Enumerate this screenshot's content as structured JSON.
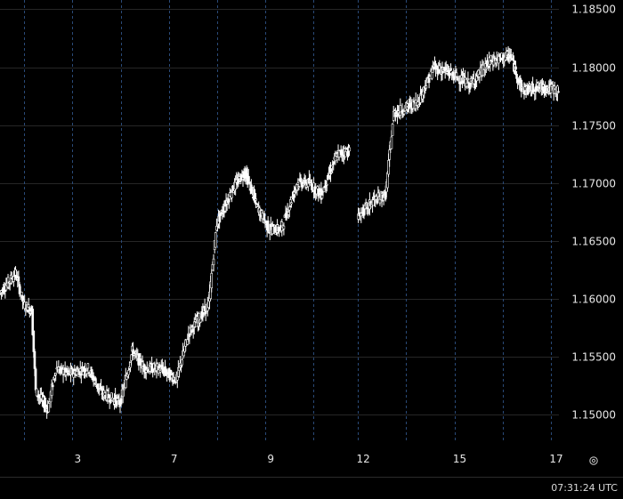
{
  "chart_data": {
    "type": "candlestick",
    "x_tick_labels": [
      "3",
      "7",
      "9",
      "12",
      "15",
      "17"
    ],
    "y_tick_labels": [
      "1.18500",
      "1.18000",
      "1.17500",
      "1.17000",
      "1.16500",
      "1.16000",
      "1.15500",
      "1.15000"
    ],
    "y_ticks": [
      1.185,
      1.18,
      1.175,
      1.17,
      1.165,
      1.16,
      1.155,
      1.15
    ],
    "ylim": [
      1.1477,
      1.1858
    ],
    "x_range": [
      0,
      139
    ],
    "grid": true,
    "price_path": [
      [
        0,
        1.1605
      ],
      [
        4,
        1.1622
      ],
      [
        6,
        1.1595
      ],
      [
        8,
        1.159
      ],
      [
        9,
        1.152
      ],
      [
        12,
        1.1505
      ],
      [
        14,
        1.154
      ],
      [
        17,
        1.1535
      ],
      [
        22,
        1.154
      ],
      [
        25,
        1.152
      ],
      [
        30,
        1.151
      ],
      [
        33,
        1.1555
      ],
      [
        36,
        1.154
      ],
      [
        40,
        1.154
      ],
      [
        44,
        1.153
      ],
      [
        47,
        1.157
      ],
      [
        52,
        1.1595
      ],
      [
        54,
        1.1665
      ],
      [
        58,
        1.1695
      ],
      [
        61,
        1.171
      ],
      [
        64,
        1.168
      ],
      [
        67,
        1.166
      ],
      [
        70,
        1.166
      ],
      [
        74,
        1.17
      ],
      [
        77,
        1.17
      ],
      [
        80,
        1.169
      ],
      [
        84,
        1.1725
      ],
      [
        87,
        1.1728
      ],
      [
        88,
        null
      ],
      [
        89,
        1.167
      ],
      [
        93,
        1.1685
      ],
      [
        96,
        1.169
      ],
      [
        98,
        1.176
      ],
      [
        104,
        1.177
      ],
      [
        108,
        1.18
      ],
      [
        112,
        1.1795
      ],
      [
        117,
        1.1785
      ],
      [
        122,
        1.1805
      ],
      [
        127,
        1.181
      ],
      [
        130,
        1.178
      ],
      [
        135,
        1.1783
      ],
      [
        139,
        1.178
      ]
    ],
    "grid_days": [
      {
        "label": "",
        "pos": 6
      },
      {
        "label": "3",
        "pos": 18
      },
      {
        "label": "",
        "pos": 30
      },
      {
        "label": "",
        "pos": 42
      },
      {
        "label": "7",
        "pos": 42
      },
      {
        "label": "",
        "pos": 54
      },
      {
        "label": "9",
        "pos": 66
      },
      {
        "label": "",
        "pos": 78
      },
      {
        "label": "12",
        "pos": 89
      },
      {
        "label": "",
        "pos": 101
      },
      {
        "label": "15",
        "pos": 113
      },
      {
        "label": "",
        "pos": 125
      },
      {
        "label": "17",
        "pos": 137
      }
    ]
  },
  "status": {
    "clock": "07:31:24 UTC"
  },
  "colors": {
    "background": "#000000",
    "candle": "#ffffff",
    "grid": "#262626",
    "day_separator": "#2a4a78",
    "text": "#e6e6e6"
  },
  "icons": {
    "settings": "settings-icon"
  }
}
